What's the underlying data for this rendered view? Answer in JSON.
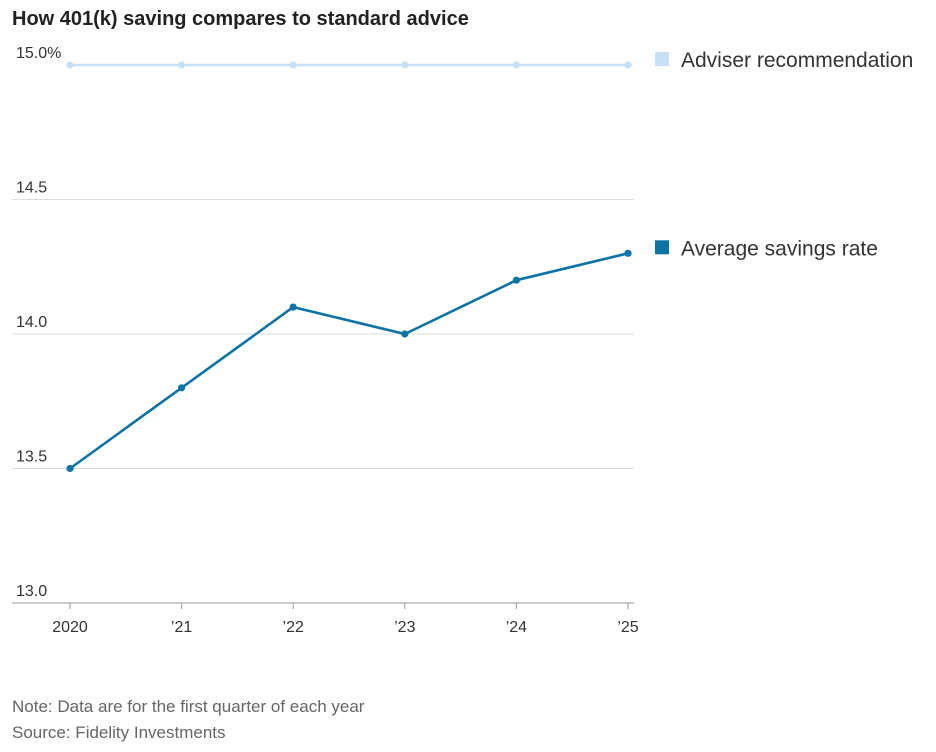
{
  "chart_data": {
    "type": "line",
    "title": "How 401(k) saving compares to standard advice",
    "categories": [
      "2020",
      "’21",
      "’22",
      "’23",
      "’24",
      "’25"
    ],
    "series": [
      {
        "name": "Adviser recommendation",
        "color": "#c6e1f5",
        "values": [
          15.0,
          15.0,
          15.0,
          15.0,
          15.0,
          15.0
        ]
      },
      {
        "name": "Average savings rate",
        "color": "#0c73a6",
        "values": [
          13.5,
          13.8,
          14.1,
          14.0,
          14.2,
          14.3
        ]
      }
    ],
    "ylim": [
      13.0,
      15.0
    ],
    "yticks": [
      "13.0",
      "13.5",
      "14.0",
      "14.5",
      "15.0%"
    ],
    "ytick_values": [
      13.0,
      13.5,
      14.0,
      14.5,
      15.0
    ],
    "grid": true,
    "legend_placement": "right"
  },
  "footer": {
    "note": "Note: Data are for the first quarter of each year",
    "source": "Source: Fidelity Investments"
  },
  "colors": {
    "grid": "#dddddd",
    "axis": "#999999"
  }
}
